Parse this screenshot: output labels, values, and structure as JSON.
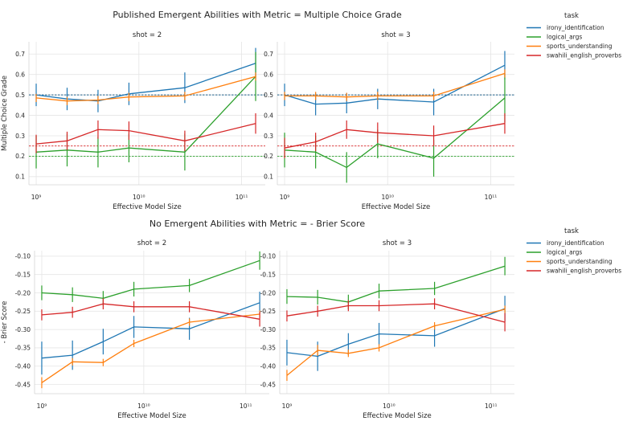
{
  "colors": {
    "irony_identification": "#1f77b4",
    "logical_args": "#2ca02c",
    "sports_understanding": "#ff7f0e",
    "swahili_english_proverbs": "#d62728"
  },
  "chart_data": [
    {
      "type": "line",
      "title": "Published Emergent Abilities with Metric = Multiple Choice Grade",
      "ylabel": "Multiple Choice Grade",
      "xlabel": "Effective Model Size",
      "xscale": "log",
      "xlim": [
        850000000.0,
        170000000000.0
      ],
      "ylim": [
        0.06,
        0.76
      ],
      "yticks": [
        0.1,
        0.2,
        0.3,
        0.4,
        0.5,
        0.6,
        0.7
      ],
      "ytick_labels": [
        "0.1",
        "0.2",
        "0.3",
        "0.4",
        "0.5",
        "0.6",
        "0.7"
      ],
      "xticks": [
        1000000000.0,
        10000000000.0,
        100000000000.0
      ],
      "xtick_labels": [
        "10⁹",
        "10¹⁰",
        "10¹¹"
      ],
      "x": [
        1000000000.0,
        2000000000.0,
        4000000000.0,
        8000000000.0,
        28000000000.0,
        137000000000.0
      ],
      "legend": {
        "title": "task",
        "entries": [
          "irony_identification",
          "logical_args",
          "sports_understanding",
          "swahili_english_proverbs"
        ],
        "position": "right"
      },
      "panels": [
        {
          "title": "shot = 2",
          "series": [
            {
              "name": "irony_identification",
              "values": [
                0.5,
                0.48,
                0.47,
                0.505,
                0.535,
                0.655
              ],
              "err": [
                0.055,
                0.055,
                0.055,
                0.055,
                0.075,
                0.075
              ]
            },
            {
              "name": "logical_args",
              "values": [
                0.22,
                0.23,
                0.22,
                0.24,
                0.22,
                0.59
              ],
              "err": [
                0.08,
                0.08,
                0.075,
                0.07,
                0.09,
                0.12
              ]
            },
            {
              "name": "sports_understanding",
              "values": [
                0.485,
                0.47,
                0.475,
                0.49,
                0.495,
                0.59
              ],
              "err": [
                0.02,
                0.02,
                0.02,
                0.02,
                0.02,
                0.02
              ]
            },
            {
              "name": "swahili_english_proverbs",
              "values": [
                0.26,
                0.275,
                0.33,
                0.325,
                0.275,
                0.36
              ],
              "err": [
                0.045,
                0.045,
                0.045,
                0.045,
                0.05,
                0.05
              ]
            }
          ],
          "reference_lines": [
            {
              "name": "sports_understanding",
              "y": 0.5
            },
            {
              "name": "irony_identification",
              "y": 0.5
            },
            {
              "name": "swahili_english_proverbs",
              "y": 0.25
            },
            {
              "name": "logical_args",
              "y": 0.2
            }
          ]
        },
        {
          "title": "shot = 3",
          "series": [
            {
              "name": "irony_identification",
              "values": [
                0.5,
                0.455,
                0.46,
                0.48,
                0.465,
                0.645
              ],
              "err": [
                0.055,
                0.055,
                0.05,
                0.05,
                0.065,
                0.07
              ]
            },
            {
              "name": "logical_args",
              "values": [
                0.23,
                0.22,
                0.145,
                0.26,
                0.19,
                0.485
              ],
              "err": [
                0.085,
                0.08,
                0.075,
                0.07,
                0.09,
                0.12
              ]
            },
            {
              "name": "sports_understanding",
              "values": [
                0.495,
                0.495,
                0.49,
                0.495,
                0.495,
                0.605
              ],
              "err": [
                0.02,
                0.02,
                0.02,
                0.02,
                0.02,
                0.02
              ]
            },
            {
              "name": "swahili_english_proverbs",
              "values": [
                0.24,
                0.27,
                0.33,
                0.315,
                0.3,
                0.36
              ],
              "err": [
                0.05,
                0.045,
                0.045,
                0.05,
                0.05,
                0.05
              ]
            }
          ],
          "reference_lines": [
            {
              "name": "sports_understanding",
              "y": 0.5
            },
            {
              "name": "irony_identification",
              "y": 0.5
            },
            {
              "name": "swahili_english_proverbs",
              "y": 0.25
            },
            {
              "name": "logical_args",
              "y": 0.2
            }
          ]
        }
      ]
    },
    {
      "type": "line",
      "title": "No Emergent Abilities with Metric = - Brier Score",
      "ylabel": "- Brier Score",
      "xlabel": "Effective Model Size",
      "xscale": "log",
      "xlim": [
        850000000.0,
        170000000000.0
      ],
      "ylim": [
        -0.475,
        -0.085
      ],
      "yticks": [
        -0.45,
        -0.4,
        -0.35,
        -0.3,
        -0.25,
        -0.2,
        -0.15,
        -0.1
      ],
      "ytick_labels": [
        "-0.45",
        "-0.40",
        "-0.35",
        "-0.30",
        "-0.25",
        "-0.20",
        "-0.15",
        "-0.10"
      ],
      "xticks": [
        1000000000.0,
        10000000000.0,
        100000000000.0
      ],
      "xtick_labels": [
        "10⁹",
        "10¹⁰",
        "10¹¹"
      ],
      "x": [
        1000000000.0,
        2000000000.0,
        4000000000.0,
        8000000000.0,
        28000000000.0,
        137000000000.0
      ],
      "legend": {
        "title": "task",
        "entries": [
          "irony_identification",
          "logical_args",
          "sports_understanding",
          "swahili_english_proverbs"
        ],
        "position": "right"
      },
      "panels": [
        {
          "title": "shot = 2",
          "series": [
            {
              "name": "irony_identification",
              "values": [
                -0.378,
                -0.37,
                -0.333,
                -0.293,
                -0.298,
                -0.227
              ],
              "err": [
                0.045,
                0.04,
                0.035,
                0.03,
                0.03,
                0.03
              ]
            },
            {
              "name": "logical_args",
              "values": [
                -0.2,
                -0.205,
                -0.215,
                -0.19,
                -0.18,
                -0.112
              ],
              "err": [
                0.02,
                0.02,
                0.02,
                0.02,
                0.018,
                0.025
              ]
            },
            {
              "name": "sports_understanding",
              "values": [
                -0.445,
                -0.388,
                -0.39,
                -0.338,
                -0.28,
                -0.258
              ],
              "err": [
                0.015,
                0.01,
                0.01,
                0.01,
                0.01,
                0.01
              ]
            },
            {
              "name": "swahili_english_proverbs",
              "values": [
                -0.26,
                -0.253,
                -0.23,
                -0.238,
                -0.238,
                -0.272
              ],
              "err": [
                0.015,
                0.015,
                0.015,
                0.015,
                0.015,
                0.02
              ]
            }
          ],
          "reference_lines": []
        },
        {
          "title": "shot = 3",
          "series": [
            {
              "name": "irony_identification",
              "values": [
                -0.363,
                -0.373,
                -0.34,
                -0.312,
                -0.317,
                -0.243
              ],
              "err": [
                0.035,
                0.04,
                0.03,
                0.03,
                0.03,
                0.035
              ]
            },
            {
              "name": "logical_args",
              "values": [
                -0.21,
                -0.212,
                -0.225,
                -0.195,
                -0.188,
                -0.127
              ],
              "err": [
                0.02,
                0.02,
                0.02,
                0.02,
                0.018,
                0.025
              ]
            },
            {
              "name": "sports_understanding",
              "values": [
                -0.425,
                -0.357,
                -0.365,
                -0.35,
                -0.29,
                -0.245
              ],
              "err": [
                0.015,
                0.015,
                0.01,
                0.01,
                0.01,
                0.01
              ]
            },
            {
              "name": "swahili_english_proverbs",
              "values": [
                -0.263,
                -0.25,
                -0.235,
                -0.235,
                -0.23,
                -0.28
              ],
              "err": [
                0.015,
                0.015,
                0.015,
                0.015,
                0.015,
                0.025
              ]
            }
          ],
          "reference_lines": []
        }
      ]
    }
  ]
}
